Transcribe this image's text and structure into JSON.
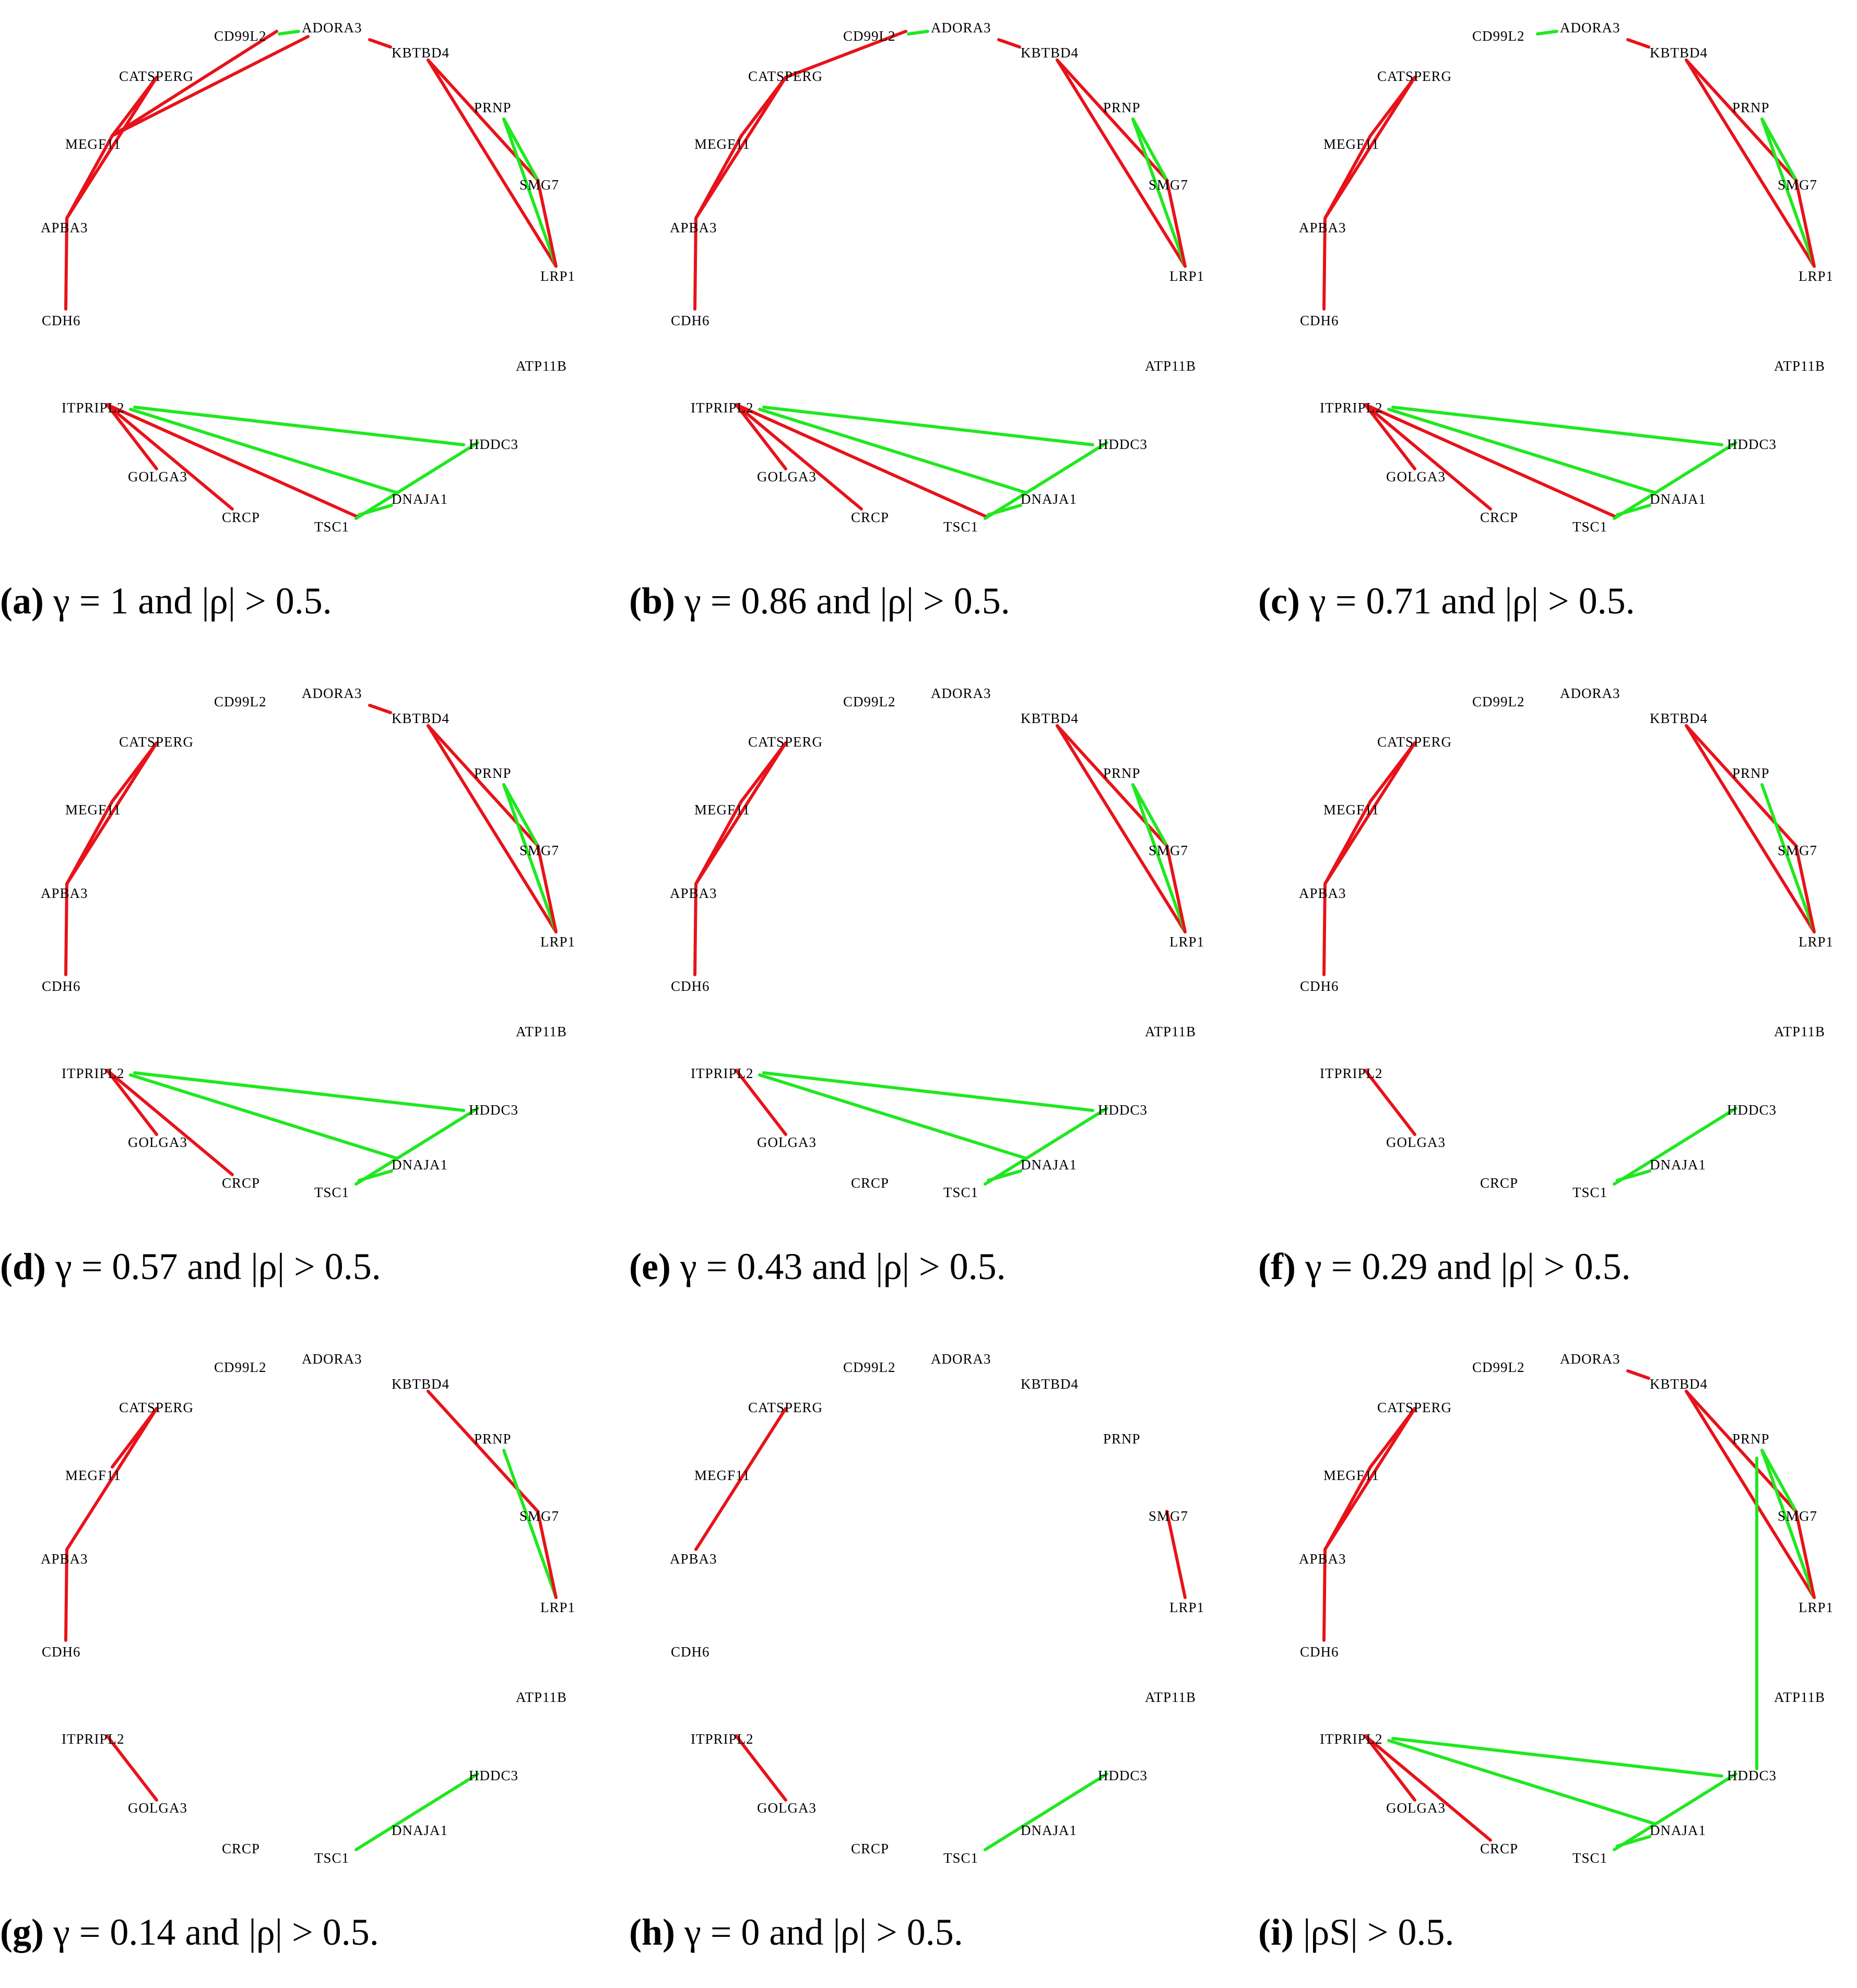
{
  "colors": {
    "positive": "#1fe81f",
    "negative": "#e8121a",
    "label": "#000000"
  },
  "nodes": [
    "CD99L2",
    "ADORA3",
    "KBTBD4",
    "CATSPERG",
    "PRNP",
    "MEGF11",
    "SMG7",
    "APBA3",
    "LRP1",
    "CDH6",
    "ATP11B",
    "ITPRIPL2",
    "HDDC3",
    "GOLGA3",
    "DNAJA1",
    "CRCP",
    "TSC1"
  ],
  "panels": [
    {
      "id": "a",
      "label": "(a)",
      "caption": "γ = 1 and |ρ| > 0.5.",
      "edges": [
        {
          "s": "CD99L2",
          "t": "ADORA3",
          "sign": "pos"
        },
        {
          "s": "CD99L2",
          "t": "MEGF11",
          "sign": "neg"
        },
        {
          "s": "ADORA3",
          "t": "MEGF11",
          "sign": "neg"
        },
        {
          "s": "ADORA3",
          "t": "KBTBD4",
          "sign": "neg"
        },
        {
          "s": "CATSPERG",
          "t": "MEGF11",
          "sign": "neg"
        },
        {
          "s": "CATSPERG",
          "t": "APBA3",
          "sign": "neg"
        },
        {
          "s": "MEGF11",
          "t": "APBA3",
          "sign": "neg"
        },
        {
          "s": "APBA3",
          "t": "CDH6",
          "sign": "neg"
        },
        {
          "s": "KBTBD4",
          "t": "SMG7",
          "sign": "neg"
        },
        {
          "s": "KBTBD4",
          "t": "LRP1",
          "sign": "neg"
        },
        {
          "s": "PRNP",
          "t": "SMG7",
          "sign": "pos"
        },
        {
          "s": "PRNP",
          "t": "LRP1",
          "sign": "pos"
        },
        {
          "s": "SMG7",
          "t": "LRP1",
          "sign": "neg"
        },
        {
          "s": "ITPRIPL2",
          "t": "GOLGA3",
          "sign": "neg"
        },
        {
          "s": "ITPRIPL2",
          "t": "CRCP",
          "sign": "neg"
        },
        {
          "s": "ITPRIPL2",
          "t": "TSC1",
          "sign": "neg"
        },
        {
          "s": "ITPRIPL2",
          "t": "HDDC3",
          "sign": "pos"
        },
        {
          "s": "ITPRIPL2",
          "t": "DNAJA1",
          "sign": "pos"
        },
        {
          "s": "HDDC3",
          "t": "TSC1",
          "sign": "pos"
        },
        {
          "s": "DNAJA1",
          "t": "TSC1",
          "sign": "pos"
        }
      ]
    },
    {
      "id": "b",
      "label": "(b)",
      "caption": "γ = 0.86 and |ρ| > 0.5.",
      "edges": [
        {
          "s": "CD99L2",
          "t": "ADORA3",
          "sign": "pos"
        },
        {
          "s": "CD99L2",
          "t": "CATSPERG",
          "sign": "neg"
        },
        {
          "s": "ADORA3",
          "t": "KBTBD4",
          "sign": "neg"
        },
        {
          "s": "CATSPERG",
          "t": "MEGF11",
          "sign": "neg"
        },
        {
          "s": "CATSPERG",
          "t": "APBA3",
          "sign": "neg"
        },
        {
          "s": "MEGF11",
          "t": "APBA3",
          "sign": "neg"
        },
        {
          "s": "APBA3",
          "t": "CDH6",
          "sign": "neg"
        },
        {
          "s": "KBTBD4",
          "t": "SMG7",
          "sign": "neg"
        },
        {
          "s": "KBTBD4",
          "t": "LRP1",
          "sign": "neg"
        },
        {
          "s": "PRNP",
          "t": "SMG7",
          "sign": "pos"
        },
        {
          "s": "PRNP",
          "t": "LRP1",
          "sign": "pos"
        },
        {
          "s": "SMG7",
          "t": "LRP1",
          "sign": "neg"
        },
        {
          "s": "ITPRIPL2",
          "t": "GOLGA3",
          "sign": "neg"
        },
        {
          "s": "ITPRIPL2",
          "t": "CRCP",
          "sign": "neg"
        },
        {
          "s": "ITPRIPL2",
          "t": "TSC1",
          "sign": "neg"
        },
        {
          "s": "ITPRIPL2",
          "t": "HDDC3",
          "sign": "pos"
        },
        {
          "s": "ITPRIPL2",
          "t": "DNAJA1",
          "sign": "pos"
        },
        {
          "s": "HDDC3",
          "t": "TSC1",
          "sign": "pos"
        },
        {
          "s": "DNAJA1",
          "t": "TSC1",
          "sign": "pos"
        }
      ]
    },
    {
      "id": "c",
      "label": "(c)",
      "caption": "γ = 0.71 and |ρ| > 0.5.",
      "edges": [
        {
          "s": "CD99L2",
          "t": "ADORA3",
          "sign": "pos"
        },
        {
          "s": "ADORA3",
          "t": "KBTBD4",
          "sign": "neg"
        },
        {
          "s": "CATSPERG",
          "t": "MEGF11",
          "sign": "neg"
        },
        {
          "s": "CATSPERG",
          "t": "APBA3",
          "sign": "neg"
        },
        {
          "s": "MEGF11",
          "t": "APBA3",
          "sign": "neg"
        },
        {
          "s": "APBA3",
          "t": "CDH6",
          "sign": "neg"
        },
        {
          "s": "KBTBD4",
          "t": "SMG7",
          "sign": "neg"
        },
        {
          "s": "KBTBD4",
          "t": "LRP1",
          "sign": "neg"
        },
        {
          "s": "PRNP",
          "t": "SMG7",
          "sign": "pos"
        },
        {
          "s": "PRNP",
          "t": "LRP1",
          "sign": "pos"
        },
        {
          "s": "SMG7",
          "t": "LRP1",
          "sign": "neg"
        },
        {
          "s": "ITPRIPL2",
          "t": "GOLGA3",
          "sign": "neg"
        },
        {
          "s": "ITPRIPL2",
          "t": "CRCP",
          "sign": "neg"
        },
        {
          "s": "ITPRIPL2",
          "t": "TSC1",
          "sign": "neg"
        },
        {
          "s": "ITPRIPL2",
          "t": "HDDC3",
          "sign": "pos"
        },
        {
          "s": "ITPRIPL2",
          "t": "DNAJA1",
          "sign": "pos"
        },
        {
          "s": "HDDC3",
          "t": "TSC1",
          "sign": "pos"
        },
        {
          "s": "DNAJA1",
          "t": "TSC1",
          "sign": "pos"
        }
      ]
    },
    {
      "id": "d",
      "label": "(d)",
      "caption": "γ = 0.57 and |ρ| > 0.5.",
      "edges": [
        {
          "s": "ADORA3",
          "t": "KBTBD4",
          "sign": "neg"
        },
        {
          "s": "CATSPERG",
          "t": "MEGF11",
          "sign": "neg"
        },
        {
          "s": "CATSPERG",
          "t": "APBA3",
          "sign": "neg"
        },
        {
          "s": "MEGF11",
          "t": "APBA3",
          "sign": "neg"
        },
        {
          "s": "APBA3",
          "t": "CDH6",
          "sign": "neg"
        },
        {
          "s": "KBTBD4",
          "t": "SMG7",
          "sign": "neg"
        },
        {
          "s": "KBTBD4",
          "t": "LRP1",
          "sign": "neg"
        },
        {
          "s": "PRNP",
          "t": "SMG7",
          "sign": "pos"
        },
        {
          "s": "PRNP",
          "t": "LRP1",
          "sign": "pos"
        },
        {
          "s": "SMG7",
          "t": "LRP1",
          "sign": "neg"
        },
        {
          "s": "ITPRIPL2",
          "t": "GOLGA3",
          "sign": "neg"
        },
        {
          "s": "ITPRIPL2",
          "t": "CRCP",
          "sign": "neg"
        },
        {
          "s": "ITPRIPL2",
          "t": "HDDC3",
          "sign": "pos"
        },
        {
          "s": "ITPRIPL2",
          "t": "DNAJA1",
          "sign": "pos"
        },
        {
          "s": "HDDC3",
          "t": "TSC1",
          "sign": "pos"
        },
        {
          "s": "DNAJA1",
          "t": "TSC1",
          "sign": "pos"
        }
      ]
    },
    {
      "id": "e",
      "label": "(e)",
      "caption": "γ = 0.43 and |ρ| > 0.5.",
      "edges": [
        {
          "s": "CATSPERG",
          "t": "MEGF11",
          "sign": "neg"
        },
        {
          "s": "CATSPERG",
          "t": "APBA3",
          "sign": "neg"
        },
        {
          "s": "MEGF11",
          "t": "APBA3",
          "sign": "neg"
        },
        {
          "s": "APBA3",
          "t": "CDH6",
          "sign": "neg"
        },
        {
          "s": "KBTBD4",
          "t": "SMG7",
          "sign": "neg"
        },
        {
          "s": "KBTBD4",
          "t": "LRP1",
          "sign": "neg"
        },
        {
          "s": "PRNP",
          "t": "SMG7",
          "sign": "pos"
        },
        {
          "s": "PRNP",
          "t": "LRP1",
          "sign": "pos"
        },
        {
          "s": "SMG7",
          "t": "LRP1",
          "sign": "neg"
        },
        {
          "s": "ITPRIPL2",
          "t": "GOLGA3",
          "sign": "neg"
        },
        {
          "s": "ITPRIPL2",
          "t": "HDDC3",
          "sign": "pos"
        },
        {
          "s": "ITPRIPL2",
          "t": "DNAJA1",
          "sign": "pos"
        },
        {
          "s": "HDDC3",
          "t": "TSC1",
          "sign": "pos"
        },
        {
          "s": "DNAJA1",
          "t": "TSC1",
          "sign": "pos"
        }
      ]
    },
    {
      "id": "f",
      "label": "(f)",
      "caption": "γ = 0.29 and |ρ| > 0.5.",
      "edges": [
        {
          "s": "CATSPERG",
          "t": "MEGF11",
          "sign": "neg"
        },
        {
          "s": "CATSPERG",
          "t": "APBA3",
          "sign": "neg"
        },
        {
          "s": "MEGF11",
          "t": "APBA3",
          "sign": "neg"
        },
        {
          "s": "APBA3",
          "t": "CDH6",
          "sign": "neg"
        },
        {
          "s": "KBTBD4",
          "t": "SMG7",
          "sign": "neg"
        },
        {
          "s": "KBTBD4",
          "t": "LRP1",
          "sign": "neg"
        },
        {
          "s": "PRNP",
          "t": "LRP1",
          "sign": "pos"
        },
        {
          "s": "SMG7",
          "t": "LRP1",
          "sign": "neg"
        },
        {
          "s": "ITPRIPL2",
          "t": "GOLGA3",
          "sign": "neg"
        },
        {
          "s": "HDDC3",
          "t": "TSC1",
          "sign": "pos"
        },
        {
          "s": "DNAJA1",
          "t": "TSC1",
          "sign": "pos"
        }
      ]
    },
    {
      "id": "g",
      "label": "(g)",
      "caption": "γ = 0.14 and |ρ| > 0.5.",
      "edges": [
        {
          "s": "CATSPERG",
          "t": "MEGF11",
          "sign": "neg"
        },
        {
          "s": "CATSPERG",
          "t": "APBA3",
          "sign": "neg"
        },
        {
          "s": "APBA3",
          "t": "CDH6",
          "sign": "neg"
        },
        {
          "s": "KBTBD4",
          "t": "SMG7",
          "sign": "neg"
        },
        {
          "s": "PRNP",
          "t": "LRP1",
          "sign": "pos"
        },
        {
          "s": "SMG7",
          "t": "LRP1",
          "sign": "neg"
        },
        {
          "s": "ITPRIPL2",
          "t": "GOLGA3",
          "sign": "neg"
        },
        {
          "s": "HDDC3",
          "t": "TSC1",
          "sign": "pos"
        }
      ]
    },
    {
      "id": "h",
      "label": "(h)",
      "caption": "γ = 0 and |ρ| > 0.5.",
      "edges": [
        {
          "s": "CATSPERG",
          "t": "APBA3",
          "sign": "neg"
        },
        {
          "s": "SMG7",
          "t": "LRP1",
          "sign": "neg"
        },
        {
          "s": "ITPRIPL2",
          "t": "GOLGA3",
          "sign": "neg"
        },
        {
          "s": "HDDC3",
          "t": "TSC1",
          "sign": "pos"
        }
      ]
    },
    {
      "id": "i",
      "label": "(i)",
      "caption": "|ρS| > 0.5.",
      "edges": [
        {
          "s": "ADORA3",
          "t": "KBTBD4",
          "sign": "neg"
        },
        {
          "s": "CATSPERG",
          "t": "MEGF11",
          "sign": "neg"
        },
        {
          "s": "CATSPERG",
          "t": "APBA3",
          "sign": "neg"
        },
        {
          "s": "MEGF11",
          "t": "APBA3",
          "sign": "neg"
        },
        {
          "s": "APBA3",
          "t": "CDH6",
          "sign": "neg"
        },
        {
          "s": "KBTBD4",
          "t": "SMG7",
          "sign": "neg"
        },
        {
          "s": "KBTBD4",
          "t": "LRP1",
          "sign": "neg"
        },
        {
          "s": "PRNP",
          "t": "SMG7",
          "sign": "pos"
        },
        {
          "s": "PRNP",
          "t": "LRP1",
          "sign": "pos"
        },
        {
          "s": "PRNP",
          "t": "HDDC3",
          "sign": "pos"
        },
        {
          "s": "SMG7",
          "t": "LRP1",
          "sign": "neg"
        },
        {
          "s": "ITPRIPL2",
          "t": "GOLGA3",
          "sign": "neg"
        },
        {
          "s": "ITPRIPL2",
          "t": "CRCP",
          "sign": "neg"
        },
        {
          "s": "ITPRIPL2",
          "t": "HDDC3",
          "sign": "pos"
        },
        {
          "s": "ITPRIPL2",
          "t": "DNAJA1",
          "sign": "pos"
        },
        {
          "s": "HDDC3",
          "t": "TSC1",
          "sign": "pos"
        },
        {
          "s": "DNAJA1",
          "t": "TSC1",
          "sign": "pos"
        }
      ]
    }
  ]
}
